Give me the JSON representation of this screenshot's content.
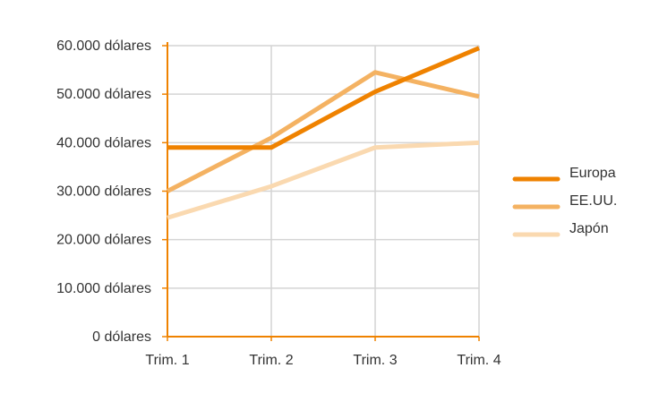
{
  "chart_data": {
    "type": "line",
    "title": "",
    "xlabel": "",
    "ylabel": "",
    "categories": [
      "Trim. 1",
      "Trim. 2",
      "Trim. 3",
      "Trim. 4"
    ],
    "y_ticks": [
      {
        "value": 0,
        "label": "0 dólares"
      },
      {
        "value": 10000,
        "label": "10.000 dólares"
      },
      {
        "value": 20000,
        "label": "20.000 dólares"
      },
      {
        "value": 30000,
        "label": "30.000 dólares"
      },
      {
        "value": 40000,
        "label": "40.000 dólares"
      },
      {
        "value": 50000,
        "label": "50.000 dólares"
      },
      {
        "value": 60000,
        "label": "60.000 dólares"
      }
    ],
    "ylim": [
      0,
      60000
    ],
    "grid": true,
    "legend_position": "right",
    "series": [
      {
        "name": "Europa",
        "color": "#ef8200",
        "values": [
          39000,
          39000,
          50500,
          59500
        ]
      },
      {
        "name": "EE.UU.",
        "color": "#f4b262",
        "values": [
          30000,
          41000,
          54500,
          49500
        ]
      },
      {
        "name": "Japón",
        "color": "#fad9b0",
        "values": [
          24500,
          31000,
          39000,
          40000
        ]
      }
    ]
  }
}
